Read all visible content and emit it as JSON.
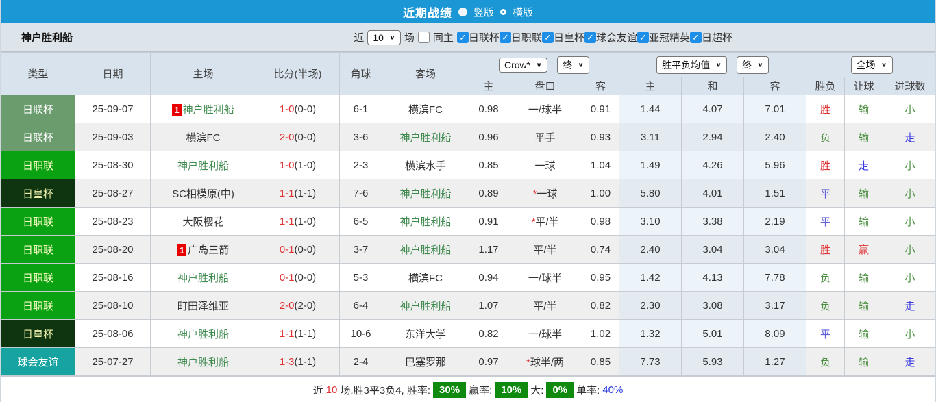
{
  "topbar": {
    "title": "近期战绩",
    "vertical_label": "竖版",
    "horizontal_label": "横版"
  },
  "filterbar": {
    "team": "神户胜利船",
    "near_label": "近",
    "near_value": "10",
    "games_label": "场",
    "same_home_label": "同主",
    "leagues": [
      "日联杯",
      "日职联",
      "日皇杯",
      "球会友谊",
      "亚冠精英",
      "日超杯"
    ]
  },
  "table": {
    "main_headers": [
      "类型",
      "日期",
      "主场",
      "比分(半场)",
      "角球",
      "客场"
    ],
    "dropdowns": {
      "source": "Crow*",
      "final1": "终",
      "avg": "胜平负均值",
      "final2": "终",
      "scope": "全场"
    },
    "sub_headers": [
      "主",
      "盘口",
      "客",
      "主",
      "和",
      "客",
      "胜负",
      "让球",
      "进球数"
    ],
    "rows": [
      {
        "type": "日联杯",
        "date": "25-09-07",
        "home_badge": "1",
        "home": "神户胜利船",
        "home_hl": true,
        "score": "1-0",
        "half": "(0-0)",
        "corners": "6-1",
        "away": "横滨FC",
        "away_hl": false,
        "w1": "0.98",
        "handicap": "一/球半",
        "handicap_star": false,
        "w2": "0.91",
        "avg_home": "1.44",
        "avg_draw": "4.07",
        "avg_away": "7.01",
        "res_wdl": "胜",
        "res_handicap": "输",
        "res_goals": "小"
      },
      {
        "type": "日联杯",
        "date": "25-09-03",
        "home_badge": "",
        "home": "横滨FC",
        "home_hl": false,
        "score": "2-0",
        "half": "(0-0)",
        "corners": "3-6",
        "away": "神户胜利船",
        "away_hl": true,
        "w1": "0.96",
        "handicap": "平手",
        "handicap_star": false,
        "w2": "0.93",
        "avg_home": "3.11",
        "avg_draw": "2.94",
        "avg_away": "2.40",
        "res_wdl": "负",
        "res_handicap": "输",
        "res_goals": "走"
      },
      {
        "type": "日职联",
        "date": "25-08-30",
        "home_badge": "",
        "home": "神户胜利船",
        "home_hl": true,
        "score": "1-0",
        "half": "(1-0)",
        "corners": "2-3",
        "away": "横滨水手",
        "away_hl": false,
        "w1": "0.85",
        "handicap": "一球",
        "handicap_star": false,
        "w2": "1.04",
        "avg_home": "1.49",
        "avg_draw": "4.26",
        "avg_away": "5.96",
        "res_wdl": "胜",
        "res_handicap": "走",
        "res_goals": "小"
      },
      {
        "type": "日皇杯",
        "date": "25-08-27",
        "home_badge": "",
        "home": "SC相模原(中)",
        "home_hl": false,
        "score": "1-1",
        "half": "(1-1)",
        "corners": "7-6",
        "away": "神户胜利船",
        "away_hl": true,
        "w1": "0.89",
        "handicap": "一球",
        "handicap_star": true,
        "w2": "1.00",
        "avg_home": "5.80",
        "avg_draw": "4.01",
        "avg_away": "1.51",
        "res_wdl": "平",
        "res_handicap": "输",
        "res_goals": "小"
      },
      {
        "type": "日职联",
        "date": "25-08-23",
        "home_badge": "",
        "home": "大阪樱花",
        "home_hl": false,
        "score": "1-1",
        "half": "(1-0)",
        "corners": "6-5",
        "away": "神户胜利船",
        "away_hl": true,
        "w1": "0.91",
        "handicap": "平/半",
        "handicap_star": true,
        "w2": "0.98",
        "avg_home": "3.10",
        "avg_draw": "3.38",
        "avg_away": "2.19",
        "res_wdl": "平",
        "res_handicap": "输",
        "res_goals": "小"
      },
      {
        "type": "日职联",
        "date": "25-08-20",
        "home_badge": "1",
        "home": "广岛三箭",
        "home_hl": false,
        "score": "0-1",
        "half": "(0-0)",
        "corners": "3-7",
        "away": "神户胜利船",
        "away_hl": true,
        "w1": "1.17",
        "handicap": "平/半",
        "handicap_star": false,
        "w2": "0.74",
        "avg_home": "2.40",
        "avg_draw": "3.04",
        "avg_away": "3.04",
        "res_wdl": "胜",
        "res_handicap": "赢",
        "res_goals": "小"
      },
      {
        "type": "日职联",
        "date": "25-08-16",
        "home_badge": "",
        "home": "神户胜利船",
        "home_hl": true,
        "score": "0-1",
        "half": "(0-0)",
        "corners": "5-3",
        "away": "横滨FC",
        "away_hl": false,
        "w1": "0.94",
        "handicap": "一/球半",
        "handicap_star": false,
        "w2": "0.95",
        "avg_home": "1.42",
        "avg_draw": "4.13",
        "avg_away": "7.78",
        "res_wdl": "负",
        "res_handicap": "输",
        "res_goals": "小"
      },
      {
        "type": "日职联",
        "date": "25-08-10",
        "home_badge": "",
        "home": "町田泽维亚",
        "home_hl": false,
        "score": "2-0",
        "half": "(2-0)",
        "corners": "6-4",
        "away": "神户胜利船",
        "away_hl": true,
        "w1": "1.07",
        "handicap": "平/半",
        "handicap_star": false,
        "w2": "0.82",
        "avg_home": "2.30",
        "avg_draw": "3.08",
        "avg_away": "3.17",
        "res_wdl": "负",
        "res_handicap": "输",
        "res_goals": "走"
      },
      {
        "type": "日皇杯",
        "date": "25-08-06",
        "home_badge": "",
        "home": "神户胜利船",
        "home_hl": true,
        "score": "1-1",
        "half": "(1-1)",
        "corners": "10-6",
        "away": "东洋大学",
        "away_hl": false,
        "w1": "0.82",
        "handicap": "一/球半",
        "handicap_star": false,
        "w2": "1.02",
        "avg_home": "1.32",
        "avg_draw": "5.01",
        "avg_away": "8.09",
        "res_wdl": "平",
        "res_handicap": "输",
        "res_goals": "小"
      },
      {
        "type": "球会友谊",
        "date": "25-07-27",
        "home_badge": "",
        "home": "神户胜利船",
        "home_hl": true,
        "score": "1-3",
        "half": "(1-1)",
        "corners": "2-4",
        "away": "巴塞罗那",
        "away_hl": false,
        "w1": "0.97",
        "handicap": "球半/两",
        "handicap_star": true,
        "w2": "0.85",
        "avg_home": "7.73",
        "avg_draw": "5.93",
        "avg_away": "1.27",
        "res_wdl": "负",
        "res_handicap": "输",
        "res_goals": "走"
      }
    ]
  },
  "summary": {
    "near_label": "近",
    "near_count": "10",
    "record_text": "场,胜3平3负4, 胜率:",
    "win_rate": "30%",
    "handicap_label": "赢率:",
    "handicap_rate": "10%",
    "big_label": "大:",
    "big_rate": "0%",
    "single_label": "单率:",
    "single_rate": "40%"
  },
  "colors": {
    "topbar_bg": "#1b97d5",
    "checkbox_blue": "#1e8fe8",
    "team_green": "#3f8a4f",
    "score_red": "#e03333",
    "badge_red": "#e80000",
    "rate_badge_green": "#0f8a0f",
    "single_rate_blue": "#2233dd",
    "types": {
      "日联杯": {
        "bg": "#6b9c6e",
        "fg": "#ffffff"
      },
      "日职联": {
        "bg": "#0aa212",
        "fg": "#ffffc8"
      },
      "日皇杯": {
        "bg": "#0e3510",
        "fg": "#eeeeaa"
      },
      "球会友谊": {
        "bg": "#17a3a0",
        "fg": "#ffffff"
      }
    },
    "results": {
      "胜": "#e03333",
      "负": "#4a8f3f",
      "平": "#6060d8",
      "赢": "#e03333",
      "输": "#4a8f3f",
      "走": "#3a3ae0",
      "小": "#4a8f3f",
      "大": "#e03333"
    }
  }
}
